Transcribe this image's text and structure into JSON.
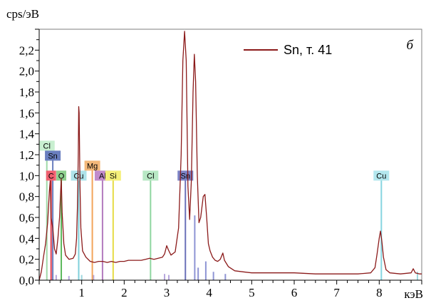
{
  "chart_data": {
    "type": "line",
    "ylabel": "cps/эВ",
    "xlabel": "кэВ",
    "panel_label": "б",
    "xlim": [
      0,
      9
    ],
    "ylim": [
      0,
      2.4
    ],
    "x_ticks": [
      1,
      2,
      3,
      4,
      5,
      6,
      7,
      8
    ],
    "x_tick_labels": [
      "1",
      "2",
      "3",
      "4",
      "5",
      "6",
      "7",
      "8"
    ],
    "y_ticks": [
      0,
      0.2,
      0.4,
      0.6,
      0.8,
      1.0,
      1.2,
      1.4,
      1.6,
      1.8,
      2.0,
      2.2
    ],
    "y_tick_labels": [
      "0,0",
      "0,2",
      "0,4",
      "0,6",
      "0,8",
      "1,0",
      "1,2",
      "1,4",
      "1,6",
      "1,8",
      "2,0",
      "2,2"
    ],
    "legend": {
      "position": "top-right"
    },
    "series": [
      {
        "name": "Sn, т. 41",
        "color": "#8b1a1a",
        "points": [
          [
            0.0,
            0.0
          ],
          [
            0.05,
            0.08
          ],
          [
            0.1,
            0.22
          ],
          [
            0.15,
            0.35
          ],
          [
            0.2,
            0.55
          ],
          [
            0.24,
            0.85
          ],
          [
            0.26,
            0.95
          ],
          [
            0.28,
            0.6
          ],
          [
            0.32,
            0.5
          ],
          [
            0.36,
            0.3
          ],
          [
            0.4,
            0.25
          ],
          [
            0.44,
            0.4
          ],
          [
            0.48,
            0.6
          ],
          [
            0.5,
            0.8
          ],
          [
            0.52,
            0.97
          ],
          [
            0.54,
            0.65
          ],
          [
            0.58,
            0.35
          ],
          [
            0.62,
            0.24
          ],
          [
            0.7,
            0.2
          ],
          [
            0.8,
            0.21
          ],
          [
            0.85,
            0.25
          ],
          [
            0.88,
            0.4
          ],
          [
            0.9,
            0.7
          ],
          [
            0.92,
            1.2
          ],
          [
            0.93,
            1.66
          ],
          [
            0.94,
            1.6
          ],
          [
            0.96,
            0.9
          ],
          [
            0.98,
            0.5
          ],
          [
            1.02,
            0.28
          ],
          [
            1.1,
            0.22
          ],
          [
            1.2,
            0.18
          ],
          [
            1.3,
            0.17
          ],
          [
            1.4,
            0.18
          ],
          [
            1.5,
            0.18
          ],
          [
            1.6,
            0.17
          ],
          [
            1.7,
            0.18
          ],
          [
            1.8,
            0.17
          ],
          [
            1.9,
            0.18
          ],
          [
            2.0,
            0.18
          ],
          [
            2.1,
            0.19
          ],
          [
            2.2,
            0.19
          ],
          [
            2.3,
            0.19
          ],
          [
            2.4,
            0.19
          ],
          [
            2.5,
            0.2
          ],
          [
            2.6,
            0.21
          ],
          [
            2.7,
            0.2
          ],
          [
            2.8,
            0.21
          ],
          [
            2.9,
            0.22
          ],
          [
            2.95,
            0.25
          ],
          [
            3.0,
            0.33
          ],
          [
            3.04,
            0.29
          ],
          [
            3.1,
            0.24
          ],
          [
            3.2,
            0.27
          ],
          [
            3.28,
            0.5
          ],
          [
            3.34,
            1.2
          ],
          [
            3.38,
            2.1
          ],
          [
            3.42,
            2.38
          ],
          [
            3.46,
            2.1
          ],
          [
            3.5,
            0.9
          ],
          [
            3.54,
            0.58
          ],
          [
            3.58,
            0.95
          ],
          [
            3.62,
            1.8
          ],
          [
            3.65,
            2.16
          ],
          [
            3.68,
            1.9
          ],
          [
            3.72,
            1.0
          ],
          [
            3.76,
            0.55
          ],
          [
            3.8,
            0.6
          ],
          [
            3.86,
            0.8
          ],
          [
            3.9,
            0.82
          ],
          [
            3.94,
            0.6
          ],
          [
            3.98,
            0.35
          ],
          [
            4.02,
            0.28
          ],
          [
            4.08,
            0.22
          ],
          [
            4.14,
            0.19
          ],
          [
            4.2,
            0.18
          ],
          [
            4.26,
            0.2
          ],
          [
            4.32,
            0.26
          ],
          [
            4.36,
            0.19
          ],
          [
            4.45,
            0.13
          ],
          [
            4.6,
            0.09
          ],
          [
            4.8,
            0.08
          ],
          [
            5.0,
            0.07
          ],
          [
            5.5,
            0.07
          ],
          [
            6.0,
            0.07
          ],
          [
            6.5,
            0.06
          ],
          [
            7.0,
            0.06
          ],
          [
            7.5,
            0.06
          ],
          [
            7.8,
            0.07
          ],
          [
            7.9,
            0.12
          ],
          [
            7.95,
            0.25
          ],
          [
            8.0,
            0.4
          ],
          [
            8.03,
            0.47
          ],
          [
            8.06,
            0.38
          ],
          [
            8.1,
            0.22
          ],
          [
            8.16,
            0.1
          ],
          [
            8.25,
            0.07
          ],
          [
            8.5,
            0.06
          ],
          [
            8.75,
            0.07
          ],
          [
            8.8,
            0.11
          ],
          [
            8.85,
            0.07
          ],
          [
            8.95,
            0.06
          ],
          [
            9.0,
            0.06
          ]
        ]
      }
    ],
    "element_markers": [
      {
        "label": "Cl",
        "x": 0.18,
        "row": 4,
        "color": "#c8efd0",
        "line_color": "#9fd9a8"
      },
      {
        "label": "Sn",
        "x": 0.32,
        "row": 3,
        "color": "#6a7fbf",
        "line_color": "#6a7fbf"
      },
      {
        "label": "C",
        "x": 0.28,
        "row": 1,
        "color": "#f06070",
        "line_color": "#e04050"
      },
      {
        "label": "O",
        "x": 0.52,
        "row": 1,
        "color": "#8fd08f",
        "line_color": "#5cb85c"
      },
      {
        "label": "Cu",
        "x": 0.93,
        "row": 1,
        "color": "#aee3ea",
        "line_color": "#7fd0db"
      },
      {
        "label": "Mg",
        "x": 1.25,
        "row": 2,
        "color": "#f4b87a",
        "line_color": "#f2a55a"
      },
      {
        "label": "Al",
        "x": 1.49,
        "row": 1,
        "color": "#c18acb",
        "line_color": "#b37abe"
      },
      {
        "label": "Si",
        "x": 1.74,
        "row": 1,
        "color": "#f5f07a",
        "line_color": "#e6dc45"
      },
      {
        "label": "Cl",
        "x": 2.62,
        "row": 1,
        "color": "#b8e8c4",
        "line_color": "#8fd6a0"
      },
      {
        "label": "Sn",
        "x": 3.44,
        "row": 1,
        "color": "#7c83c6",
        "line_color": "#6a70b8"
      },
      {
        "label": "Cu",
        "x": 8.05,
        "row": 1,
        "color": "#b3e7ee",
        "line_color": "#86d5e0"
      }
    ],
    "minor_lines": [
      {
        "x": 0.4,
        "y": 0.05,
        "color": "#b7a7dd"
      },
      {
        "x": 0.7,
        "y": 0.04,
        "color": "#b7a7dd"
      },
      {
        "x": 1.0,
        "y": 0.05,
        "color": "#9dd7de"
      },
      {
        "x": 1.28,
        "y": 0.05,
        "color": "#b7a7dd"
      },
      {
        "x": 2.95,
        "y": 0.06,
        "color": "#b7a7dd"
      },
      {
        "x": 3.05,
        "y": 0.05,
        "color": "#b7a7dd"
      },
      {
        "x": 3.66,
        "y": 0.62,
        "color": "#8e94d4"
      },
      {
        "x": 3.74,
        "y": 0.12,
        "color": "#8e94d4"
      },
      {
        "x": 3.92,
        "y": 0.18,
        "color": "#8e94d4"
      },
      {
        "x": 4.1,
        "y": 0.08,
        "color": "#8e94d4"
      },
      {
        "x": 4.38,
        "y": 0.06,
        "color": "#8e94d4"
      },
      {
        "x": 8.9,
        "y": 0.08,
        "color": "#9dd7de"
      }
    ]
  }
}
